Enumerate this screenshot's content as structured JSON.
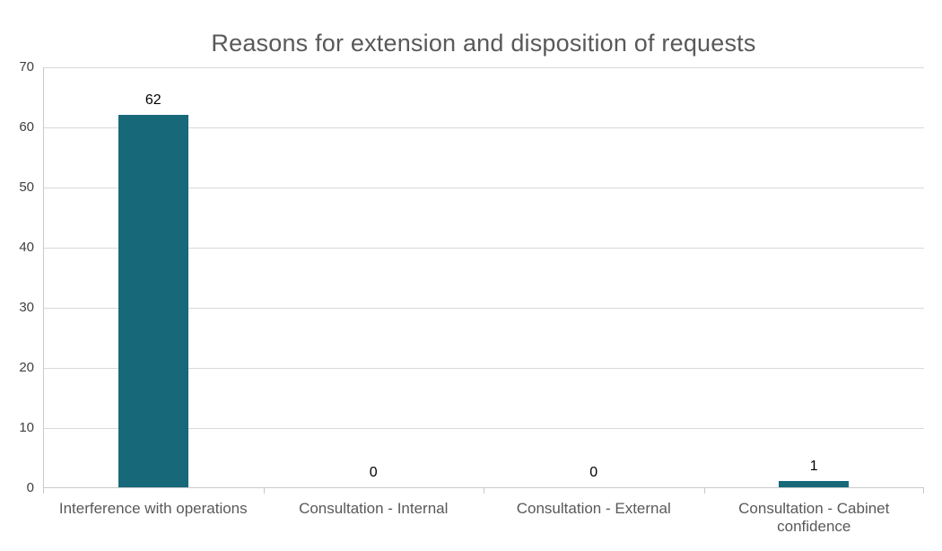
{
  "chart_data": {
    "type": "bar",
    "title": "Reasons for extension and disposition of requests",
    "categories": [
      "Interference with operations",
      "Consultation - Internal",
      "Consultation - External",
      "Consultation - Cabinet confidence"
    ],
    "values": [
      62,
      0,
      0,
      1
    ],
    "xlabel": "",
    "ylabel": "",
    "ylim": [
      0,
      70
    ],
    "ytick_step": 10,
    "grid": true,
    "legend": "none",
    "colors": {
      "bar": "#17697A",
      "gridline": "#D9D9D9",
      "axis": "#C9C9C9",
      "title": "#595959",
      "y_tick_label": "#404040",
      "category_label": "#595959",
      "data_label": "#000000",
      "background": "#FFFFFF"
    }
  }
}
